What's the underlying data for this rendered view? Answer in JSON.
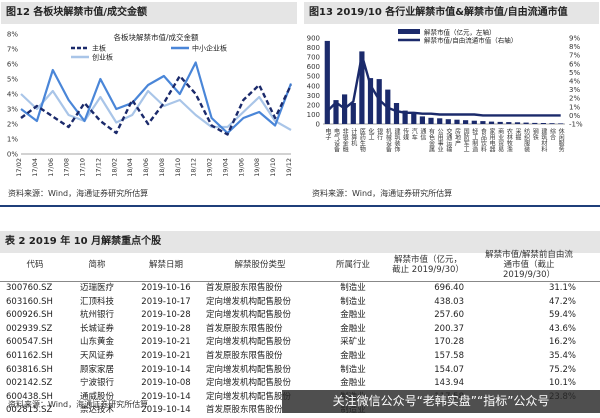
{
  "figure12": {
    "title": "图12 各板块解禁市值/成交金额",
    "source": "资料来源：Wind，海通证券研究所估算"
  },
  "figure13": {
    "title": "图13 2019/10 各行业解禁市值&解禁市值/自由流通市值",
    "source": "资料来源：Wind，海通证券研究所估算"
  },
  "colors": {
    "main_board": "#1b2a6b",
    "sme_board": "#4a86d8",
    "gem_board": "#a9c5e8",
    "bar": "#1b2a6b",
    "ratio_line": "#1b2a6b",
    "header_bg": "#e5e5e5",
    "rule": "#1f3f7a"
  },
  "chart_data": [
    {
      "type": "line",
      "title": "各板块解禁市值/成交金额",
      "x": [
        "17/02",
        "17/04",
        "17/06",
        "17/08",
        "17/10",
        "17/12",
        "18/02",
        "18/04",
        "18/06",
        "18/08",
        "18/10",
        "18/12",
        "19/02",
        "19/04",
        "19/06",
        "19/08",
        "19/10",
        "19/12"
      ],
      "y_ticks": [
        "0%",
        "1%",
        "2%",
        "3%",
        "4%",
        "5%",
        "6%",
        "7%",
        "8%"
      ],
      "ylim": [
        0,
        8
      ],
      "series": [
        {
          "name": "主板",
          "style": "dashed",
          "values": [
            2.4,
            3.2,
            2.5,
            1.8,
            3.4,
            2.2,
            1.4,
            3.6,
            2.0,
            3.4,
            5.2,
            4.0,
            1.9,
            1.3,
            3.6,
            4.6,
            2.4,
            4.6
          ]
        },
        {
          "name": "中小企业板",
          "style": "solid",
          "values": [
            3.0,
            2.2,
            5.6,
            3.6,
            2.2,
            5.0,
            3.0,
            3.4,
            4.6,
            5.2,
            4.0,
            6.1,
            2.4,
            1.4,
            2.4,
            2.8,
            1.9,
            4.7
          ]
        },
        {
          "name": "创业板",
          "style": "solid-light",
          "values": [
            4.0,
            3.0,
            4.2,
            2.6,
            2.2,
            3.8,
            2.1,
            2.6,
            4.2,
            3.2,
            3.6,
            2.6,
            1.8,
            1.8,
            2.8,
            3.8,
            2.2,
            1.6
          ]
        }
      ],
      "legend_position": "top"
    },
    {
      "type": "bar",
      "title": "",
      "legend": [
        "解禁市值（亿元，左轴）",
        "解禁市值/自由流通市值（右轴）"
      ],
      "categories": [
        "电子",
        "电气设备",
        "非银金融",
        "计算机",
        "医药生物",
        "化工",
        "银行",
        "机械设备",
        "建筑装饰",
        "传媒",
        "汽车",
        "通信",
        "有色金属",
        "公用事业",
        "交通运输",
        "房地产",
        "国防军工",
        "轻工制造",
        "食品饮料",
        "家用电器",
        "商业贸易",
        "农林牧渔",
        "采掘",
        "纺织服装",
        "钢铁",
        "建筑材料",
        "综合",
        "休闲服务"
      ],
      "bar_values": [
        870,
        250,
        310,
        220,
        760,
        480,
        470,
        360,
        220,
        140,
        120,
        80,
        65,
        60,
        50,
        45,
        40,
        35,
        30,
        25,
        22,
        20,
        18,
        15,
        12,
        10,
        8,
        6
      ],
      "ratio_values": [
        0.5,
        1.5,
        0.8,
        1.6,
        7.0,
        3.5,
        1.8,
        0.9,
        0.5,
        0.3,
        0.3,
        0.2,
        0.2,
        0.1,
        0.1,
        0.1,
        0.1,
        0.1,
        0.0,
        0.0,
        0.0,
        0.0,
        0.0,
        0.0,
        0.0,
        0.0,
        0.0,
        0.0
      ],
      "y_left_ticks": [
        "0",
        "100",
        "200",
        "300",
        "400",
        "500",
        "600",
        "700",
        "800",
        "900"
      ],
      "y_right_ticks": [
        "-1%",
        "0%",
        "1%",
        "2%",
        "3%",
        "4%",
        "5%",
        "6%",
        "7%",
        "8%",
        "9%"
      ],
      "ylim_left": [
        0,
        900
      ],
      "ylim_right": [
        -1,
        9
      ]
    }
  ],
  "table": {
    "title": "表 2 2019 年 10 月解禁重点个股",
    "headers": [
      "代码",
      "简称",
      "解禁日期",
      "解禁股份类型",
      "所属行业",
      "解禁市值（亿元，截止 2019/9/30）",
      "解禁市值/解禁前自由流通市值（截止 2019/9/30）"
    ],
    "rows": [
      [
        "300760.SZ",
        "迈瑞医疗",
        "2019-10-16",
        "首发原股东限售股份",
        "制造业",
        "696.40",
        "31.1%"
      ],
      [
        "603160.SH",
        "汇顶科技",
        "2019-10-17",
        "定向增发机构配售股份",
        "制造业",
        "438.03",
        "47.2%"
      ],
      [
        "600926.SH",
        "杭州银行",
        "2019-10-28",
        "定向增发机构配售股份",
        "金融业",
        "257.60",
        "59.4%"
      ],
      [
        "002939.SZ",
        "长城证券",
        "2019-10-28",
        "首发原股东限售股份",
        "金融业",
        "200.37",
        "43.6%"
      ],
      [
        "600547.SH",
        "山东黄金",
        "2019-10-21",
        "定向增发机构配售股份",
        "采矿业",
        "170.28",
        "16.2%"
      ],
      [
        "601162.SH",
        "天风证券",
        "2019-10-21",
        "首发原股东限售股份",
        "金融业",
        "157.58",
        "35.4%"
      ],
      [
        "603816.SH",
        "顾家家居",
        "2019-10-14",
        "定向增发机构配售股份",
        "制造业",
        "154.07",
        "75.2%"
      ],
      [
        "002142.SZ",
        "宁波银行",
        "2019-10-08",
        "定向增发机构配售股份",
        "金融业",
        "143.94",
        "10.1%"
      ],
      [
        "600438.SH",
        "通威股份",
        "2019-10-14",
        "定向增发机构配售股份",
        "制造业",
        "117.58",
        "23.8%"
      ],
      [
        "002815.SZ",
        "崇达技术",
        "2019-10-14",
        "首发原股东限售股份",
        "制造业",
        "",
        ""
      ]
    ],
    "source": "资料来源：Wind，海通证券研究所估算"
  },
  "watermark": "关注微信公众号“老韩实盘”“指标”公众号"
}
